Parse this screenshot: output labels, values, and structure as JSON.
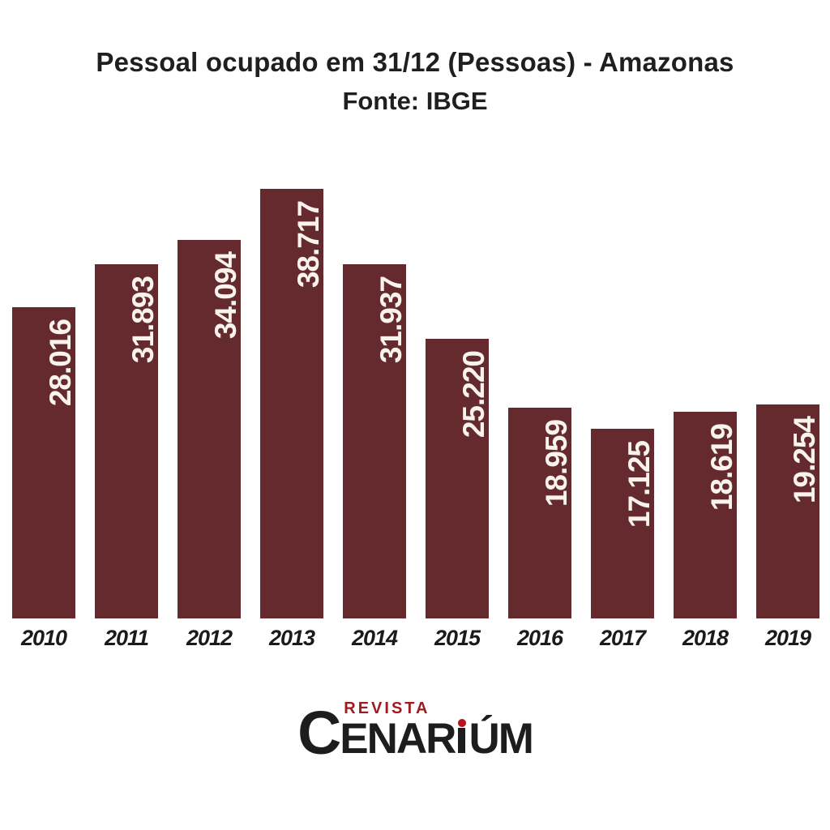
{
  "title": {
    "line1": "Pessoal ocupado em 31/12 (Pessoas) - Amazonas",
    "line2": "Fonte: IBGE"
  },
  "chart_data": {
    "type": "bar",
    "title": "Pessoal ocupado em 31/12 (Pessoas) - Amazonas",
    "subtitle": "Fonte: IBGE",
    "categories": [
      "2010",
      "2011",
      "2012",
      "2013",
      "2014",
      "2015",
      "2016",
      "2017",
      "2018",
      "2019"
    ],
    "values": [
      28016,
      31893,
      34094,
      38717,
      31937,
      25220,
      18959,
      17125,
      18619,
      19254
    ],
    "value_labels": [
      "28.016",
      "31.893",
      "34.094",
      "38.717",
      "31.937",
      "25.220",
      "18.959",
      "17.125",
      "18.619",
      "19.254"
    ],
    "xlabel": "",
    "ylabel": "",
    "ylim": [
      0,
      38717
    ],
    "grid": false,
    "legend": false,
    "orientation": "vertical",
    "bar_color": "#652a2d",
    "value_label_color": "#f8f3ec"
  },
  "logo": {
    "revista": "REVISTA",
    "cenarium_c": "C",
    "cenarium_pre_i": "ENAR",
    "cenarium_post_i": "ÚM",
    "revista_color": "#9e1c20",
    "dot_color": "#b5121b"
  }
}
